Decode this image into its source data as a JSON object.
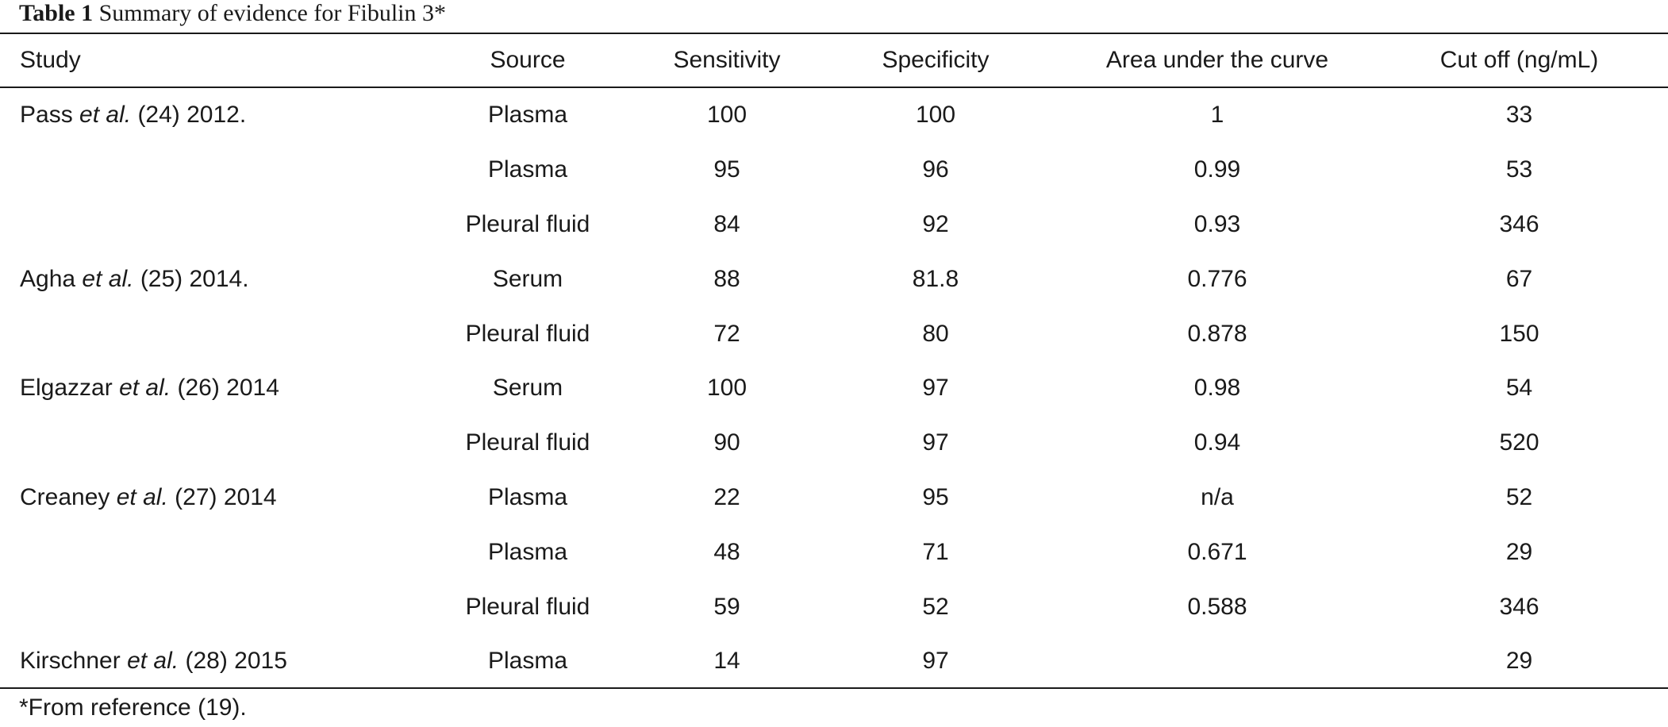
{
  "caption": {
    "label": "Table 1",
    "text": "Summary of evidence for Fibulin 3*"
  },
  "columns": [
    "Study",
    "Source",
    "Sensitivity",
    "Specificity",
    "Area under the curve",
    "Cut off (ng/mL)"
  ],
  "rows": [
    {
      "author": "Pass",
      "etal": "et al.",
      "ref": "(24) 2012.",
      "source": "Plasma",
      "sensitivity": "100",
      "specificity": "100",
      "auc": "1",
      "cutoff": "33"
    },
    {
      "author": "",
      "etal": "",
      "ref": "",
      "source": "Plasma",
      "sensitivity": "95",
      "specificity": "96",
      "auc": "0.99",
      "cutoff": "53"
    },
    {
      "author": "",
      "etal": "",
      "ref": "",
      "source": "Pleural fluid",
      "sensitivity": "84",
      "specificity": "92",
      "auc": "0.93",
      "cutoff": "346"
    },
    {
      "author": "Agha",
      "etal": "et al.",
      "ref": "(25) 2014.",
      "source": "Serum",
      "sensitivity": "88",
      "specificity": "81.8",
      "auc": "0.776",
      "cutoff": "67"
    },
    {
      "author": "",
      "etal": "",
      "ref": "",
      "source": "Pleural fluid",
      "sensitivity": "72",
      "specificity": "80",
      "auc": "0.878",
      "cutoff": "150"
    },
    {
      "author": "Elgazzar",
      "etal": "et al.",
      "ref": "(26) 2014",
      "source": "Serum",
      "sensitivity": "100",
      "specificity": "97",
      "auc": "0.98",
      "cutoff": "54"
    },
    {
      "author": "",
      "etal": "",
      "ref": "",
      "source": "Pleural fluid",
      "sensitivity": "90",
      "specificity": "97",
      "auc": "0.94",
      "cutoff": "520"
    },
    {
      "author": "Creaney",
      "etal": "et al.",
      "ref": "(27) 2014",
      "source": "Plasma",
      "sensitivity": "22",
      "specificity": "95",
      "auc": "n/a",
      "cutoff": "52"
    },
    {
      "author": "",
      "etal": "",
      "ref": "",
      "source": "Plasma",
      "sensitivity": "48",
      "specificity": "71",
      "auc": "0.671",
      "cutoff": "29"
    },
    {
      "author": "",
      "etal": "",
      "ref": "",
      "source": "Pleural fluid",
      "sensitivity": "59",
      "specificity": "52",
      "auc": "0.588",
      "cutoff": "346"
    },
    {
      "author": "Kirschner",
      "etal": "et al.",
      "ref": "(28) 2015",
      "source": "Plasma",
      "sensitivity": "14",
      "specificity": "97",
      "auc": "",
      "cutoff": "29"
    }
  ],
  "footnote": "*From reference (19)."
}
